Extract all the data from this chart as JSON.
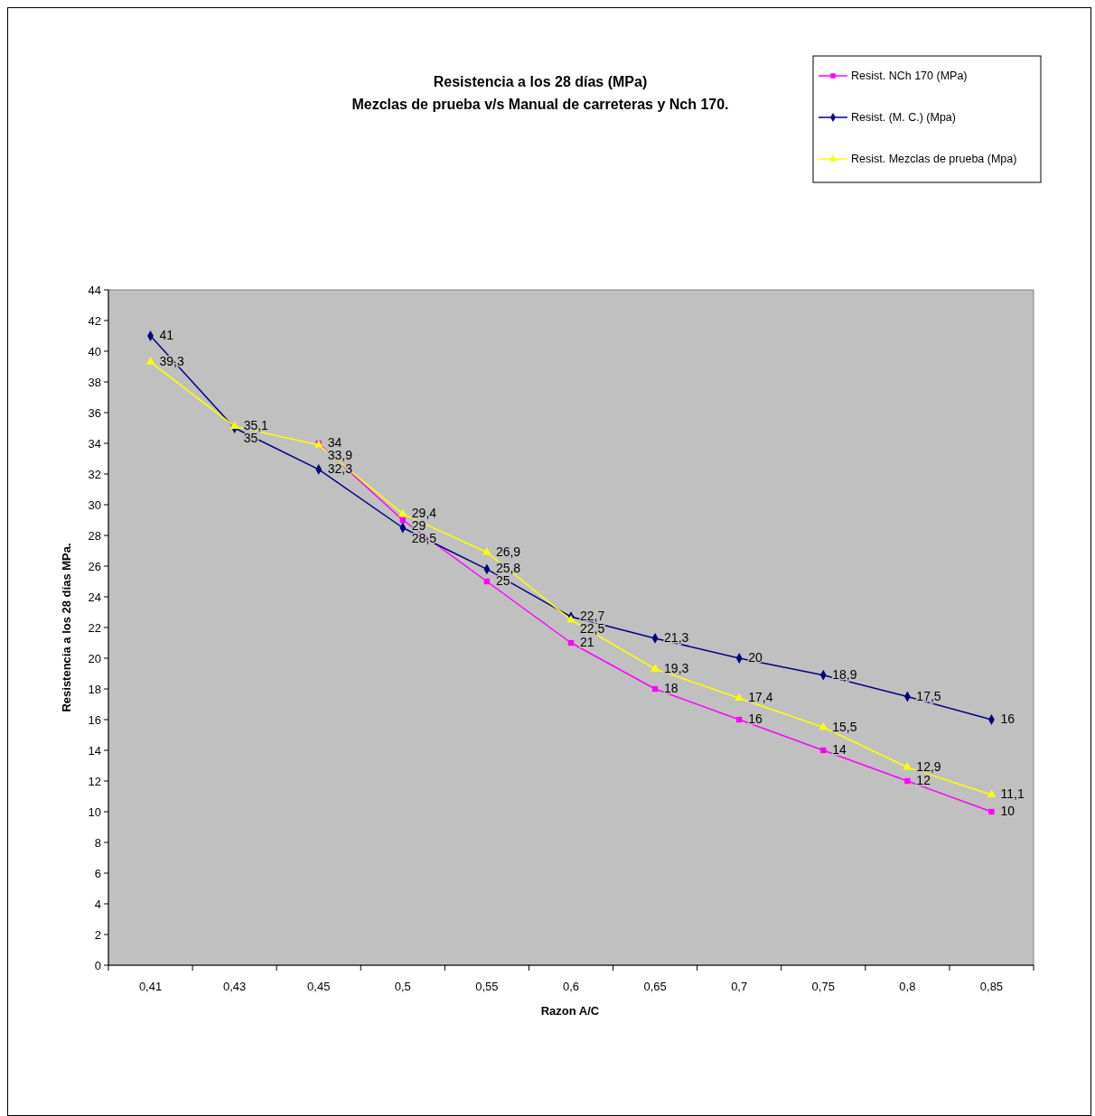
{
  "chart_data": {
    "type": "line",
    "title": "Resistencia a los 28 días (MPa)",
    "subtitle": "Mezclas de prueba v/s Manual de carreteras y Nch 170.",
    "xlabel": "Razon A/C",
    "ylabel": "Resistencia a los 28 días MPa.",
    "categories": [
      "0,41",
      "0,43",
      "0,45",
      "0,5",
      "0,55",
      "0,6",
      "0,65",
      "0,7",
      "0,75",
      "0,8",
      "0,85"
    ],
    "series": [
      {
        "name": "Resist. NCh 170 (MPa)",
        "color": "#ff00ff",
        "marker": "square",
        "values": [
          null,
          null,
          34,
          29,
          25,
          21,
          18,
          16,
          14,
          12,
          10
        ],
        "value_labels": [
          null,
          null,
          "34",
          "29",
          "25",
          "21",
          "18",
          "16",
          "14",
          "12",
          "10"
        ]
      },
      {
        "name": "Resist. (M. C.) (Mpa)",
        "color": "#000080",
        "marker": "diamond",
        "values": [
          41,
          35,
          32.3,
          28.5,
          25.8,
          22.7,
          21.3,
          20,
          18.9,
          17.5,
          16
        ],
        "value_labels": [
          "41",
          "35",
          "32,3",
          "28,5",
          "25,8",
          "22,7",
          "21,3",
          "20",
          "18,9",
          "17,5",
          "16"
        ]
      },
      {
        "name": "Resist. Mezclas de prueba (Mpa)",
        "color": "#ffff00",
        "marker": "triangle",
        "values": [
          39.3,
          35.1,
          33.9,
          29.4,
          26.9,
          22.5,
          19.3,
          17.4,
          15.5,
          12.9,
          11.1
        ],
        "value_labels": [
          "39,3",
          "35,1",
          "33,9",
          "29,4",
          "26,9",
          "22,5",
          "19,3",
          "17,4",
          "15,5",
          "12,9",
          "11,1"
        ]
      }
    ],
    "ylim": [
      0,
      44
    ],
    "yticks": [
      0,
      2,
      4,
      6,
      8,
      10,
      12,
      14,
      16,
      18,
      20,
      22,
      24,
      26,
      28,
      30,
      32,
      34,
      36,
      38,
      40,
      42,
      44
    ],
    "grid": false,
    "legend": "top right"
  }
}
